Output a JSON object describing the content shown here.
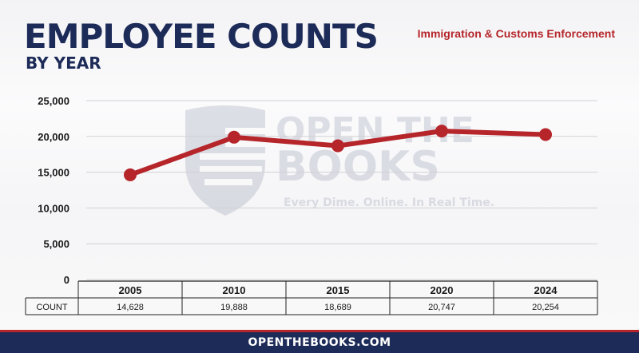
{
  "header": {
    "title": "EMPLOYEE COUNTS",
    "subtitle": "BY YEAR",
    "agency": "Immigration & Customs Enforcement"
  },
  "watermark": {
    "line1": "OPEN THE",
    "line2": "BOOKS",
    "tagline": "Every Dime. Online. In Real Time."
  },
  "footer": {
    "text": "OPENTHEBOOKS.COM"
  },
  "colors": {
    "navy": "#1d2b58",
    "red": "#b5252a"
  },
  "chart_data": {
    "type": "line",
    "categories": [
      "2005",
      "2010",
      "2015",
      "2020",
      "2024"
    ],
    "values": [
      14628,
      19888,
      18689,
      20747,
      20254
    ],
    "value_labels": [
      "14,628",
      "19,888",
      "18,689",
      "20,747",
      "20,254"
    ],
    "row_label": "COUNT",
    "ylim": [
      0,
      25000
    ],
    "yticks": [
      0,
      5000,
      10000,
      15000,
      20000,
      25000
    ],
    "ytick_labels": [
      "0",
      "5,000",
      "10,000",
      "15,000",
      "20,000",
      "25,000"
    ],
    "grid": true,
    "line_color": "#b5252a"
  }
}
